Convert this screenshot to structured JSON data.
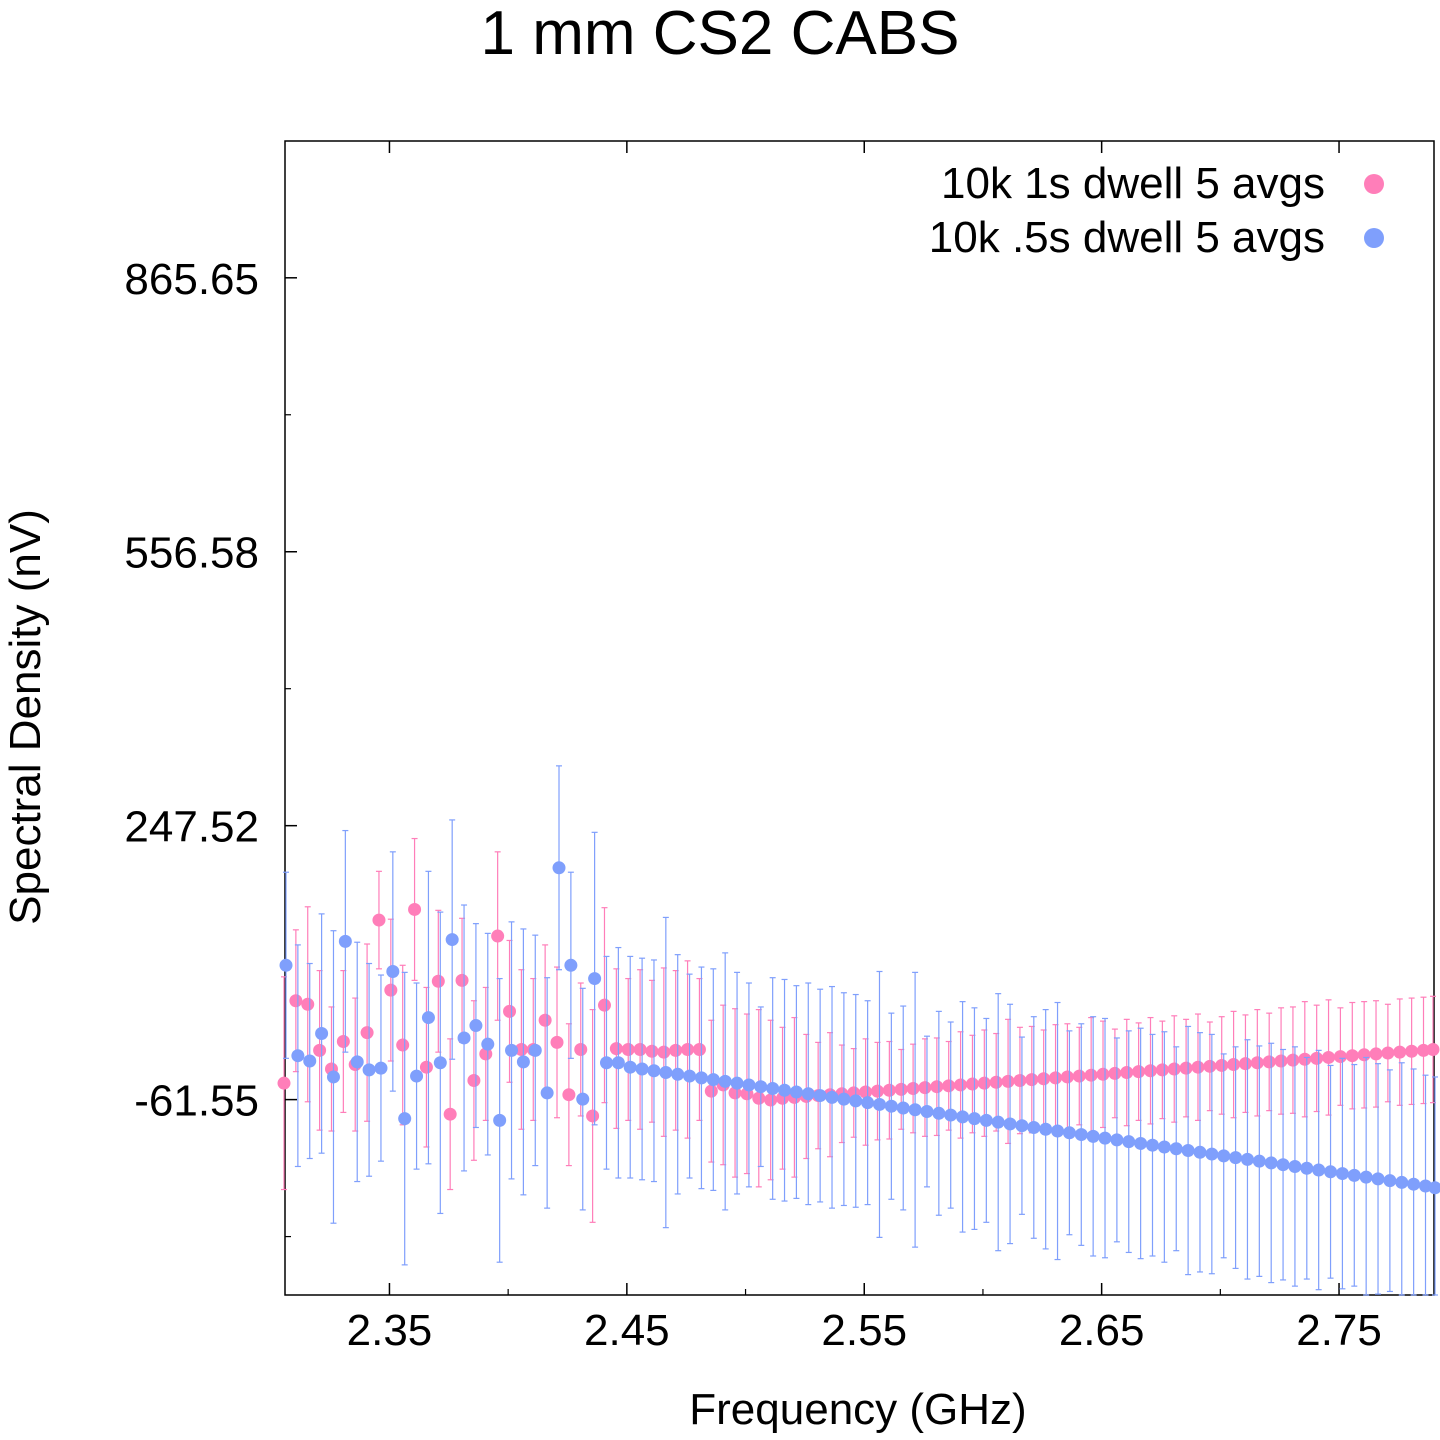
{
  "chart_data": {
    "type": "scatter",
    "title": "1 mm CS2 CABS",
    "xlabel": "Frequency (GHz)",
    "ylabel": "Spectral Density (nV)",
    "xlim": [
      2.306,
      2.79
    ],
    "ylim": [
      -282,
      1020
    ],
    "x_ticks": [
      2.35,
      2.45,
      2.55,
      2.65,
      2.75
    ],
    "x_tick_labels": [
      "2.35",
      "2.45",
      "2.55",
      "2.65",
      "2.75"
    ],
    "y_ticks": [
      -61.55,
      247.52,
      556.58,
      865.65
    ],
    "y_tick_labels": [
      "-61.55",
      "247.52",
      "556.58",
      "865.65"
    ],
    "legend_position": "top-right",
    "grid": false,
    "error_bars": true,
    "series": [
      {
        "name": "10k 1s dwell 5 avgs",
        "color": "#ff7eb9",
        "x": [
          2.306,
          2.311,
          2.316,
          2.321,
          2.326,
          2.331,
          2.336,
          2.341,
          2.346,
          2.351,
          2.356,
          2.361,
          2.366,
          2.371,
          2.376,
          2.381,
          2.386,
          2.391,
          2.396,
          2.401,
          2.406,
          2.411,
          2.416,
          2.421,
          2.426,
          2.431,
          2.436,
          2.441,
          2.446,
          2.451,
          2.456,
          2.461,
          2.466,
          2.471,
          2.476,
          2.481,
          2.486,
          2.491,
          2.496,
          2.501,
          2.506,
          2.511,
          2.516,
          2.521,
          2.526,
          2.531,
          2.536,
          2.541,
          2.546,
          2.551,
          2.556,
          2.561,
          2.566,
          2.571,
          2.576,
          2.581,
          2.586,
          2.591,
          2.596,
          2.601,
          2.606,
          2.611,
          2.616,
          2.621,
          2.626,
          2.631,
          2.636,
          2.641,
          2.646,
          2.651,
          2.656,
          2.661,
          2.666,
          2.671,
          2.676,
          2.681,
          2.686,
          2.691,
          2.696,
          2.701,
          2.706,
          2.711,
          2.716,
          2.721,
          2.726,
          2.731,
          2.736,
          2.741,
          2.746,
          2.751,
          2.756,
          2.761,
          2.766,
          2.771,
          2.776,
          2.781,
          2.786,
          2.79
        ],
        "y": [
          -43,
          50,
          46,
          -6,
          -27,
          4,
          -22,
          14,
          141,
          62,
          0,
          153,
          -25,
          72,
          -78,
          73,
          -40,
          -10,
          123,
          38,
          -5,
          -5,
          28,
          3,
          -56,
          -5,
          -80,
          45,
          -4,
          -5,
          -5,
          -7,
          -8,
          -6,
          -5,
          -5,
          -52,
          -45,
          -54,
          -55,
          -60,
          -62,
          -60,
          -59,
          -58,
          -57,
          -56,
          -55,
          -54,
          -53,
          -52,
          -51,
          -50,
          -49,
          -48,
          -47,
          -46,
          -45,
          -44,
          -43,
          -42,
          -41,
          -40,
          -39,
          -38,
          -37,
          -36,
          -35,
          -34,
          -33,
          -32,
          -31,
          -30,
          -29,
          -28,
          -27,
          -26,
          -25,
          -24,
          -23,
          -22,
          -21,
          -20,
          -19,
          -18,
          -17,
          -16,
          -15,
          -14,
          -13,
          -12,
          -11,
          -10,
          -9,
          -8,
          -7,
          -6,
          -5
        ],
        "err": [
          120,
          80,
          110,
          90,
          70,
          80,
          75,
          100,
          55,
          80,
          90,
          80,
          90,
          80,
          85,
          70,
          90,
          75,
          95,
          80,
          90,
          80,
          85,
          85,
          80,
          75,
          120,
          110,
          90,
          80,
          90,
          80,
          95,
          90,
          100,
          80,
          80,
          90,
          95,
          90,
          100,
          90,
          80,
          90,
          70,
          60,
          70,
          55,
          50,
          60,
          55,
          55,
          45,
          50,
          55,
          55,
          50,
          60,
          55,
          60,
          55,
          70,
          60,
          60,
          55,
          60,
          60,
          55,
          65,
          60,
          50,
          60,
          55,
          60,
          55,
          60,
          55,
          60,
          50,
          55,
          60,
          55,
          60,
          55,
          60,
          60,
          65,
          60,
          65,
          55,
          60,
          60,
          60,
          55,
          60,
          60,
          60,
          60
        ]
      },
      {
        "name": "10k .5s dwell 5 avgs",
        "color": "#7f9ffc",
        "x": [
          2.306,
          2.311,
          2.316,
          2.321,
          2.326,
          2.331,
          2.336,
          2.341,
          2.346,
          2.351,
          2.356,
          2.361,
          2.366,
          2.371,
          2.376,
          2.381,
          2.386,
          2.391,
          2.396,
          2.401,
          2.406,
          2.411,
          2.416,
          2.421,
          2.426,
          2.431,
          2.436,
          2.441,
          2.446,
          2.451,
          2.456,
          2.461,
          2.466,
          2.471,
          2.476,
          2.481,
          2.486,
          2.491,
          2.496,
          2.501,
          2.506,
          2.511,
          2.516,
          2.521,
          2.526,
          2.531,
          2.536,
          2.541,
          2.546,
          2.551,
          2.556,
          2.561,
          2.566,
          2.571,
          2.576,
          2.581,
          2.586,
          2.591,
          2.596,
          2.601,
          2.606,
          2.611,
          2.616,
          2.621,
          2.626,
          2.631,
          2.636,
          2.641,
          2.646,
          2.651,
          2.656,
          2.661,
          2.666,
          2.671,
          2.676,
          2.681,
          2.686,
          2.691,
          2.696,
          2.701,
          2.706,
          2.711,
          2.716,
          2.721,
          2.726,
          2.731,
          2.736,
          2.741,
          2.746,
          2.751,
          2.756,
          2.761,
          2.766,
          2.771,
          2.776,
          2.781,
          2.786,
          2.79
        ],
        "y": [
          90,
          -12,
          -18,
          13,
          -36,
          117,
          -19,
          -28,
          -26,
          83,
          -83,
          -35,
          31,
          -20,
          119,
          8,
          22,
          1,
          -85,
          -6,
          -19,
          -6,
          -54,
          200,
          90,
          -61,
          75,
          -20,
          -20,
          -25,
          -27,
          -29,
          -31,
          -33,
          -35,
          -37,
          -39,
          -41,
          -43,
          -45,
          -47,
          -49,
          -51,
          -53,
          -55,
          -57,
          -59,
          -61,
          -63,
          -65,
          -67,
          -69,
          -71,
          -73,
          -75,
          -77,
          -79,
          -81,
          -83,
          -85,
          -87,
          -89,
          -91,
          -93,
          -95,
          -97,
          -99,
          -101,
          -103,
          -105,
          -107,
          -109,
          -111,
          -113,
          -115,
          -117,
          -119,
          -121,
          -123,
          -125,
          -127,
          -129,
          -131,
          -133,
          -135,
          -137,
          -139,
          -141,
          -143,
          -145,
          -147,
          -149,
          -151,
          -153,
          -155,
          -157,
          -159,
          -161
        ],
        "err": [
          105,
          125,
          110,
          135,
          165,
          125,
          135,
          120,
          105,
          135,
          165,
          105,
          165,
          170,
          135,
          150,
          115,
          125,
          160,
          145,
          150,
          130,
          130,
          115,
          105,
          125,
          165,
          120,
          130,
          125,
          125,
          125,
          175,
          135,
          115,
          125,
          125,
          145,
          125,
          115,
          90,
          125,
          125,
          120,
          125,
          120,
          125,
          120,
          120,
          115,
          150,
          105,
          115,
          155,
          85,
          115,
          105,
          130,
          125,
          115,
          145,
          135,
          100,
          125,
          135,
          145,
          115,
          125,
          135,
          135,
          115,
          125,
          130,
          125,
          130,
          115,
          140,
          135,
          135,
          115,
          125,
          135,
          130,
          135,
          130,
          135,
          125,
          135,
          120,
          130,
          125,
          135,
          130,
          125,
          135,
          130,
          125,
          125
        ]
      }
    ]
  }
}
